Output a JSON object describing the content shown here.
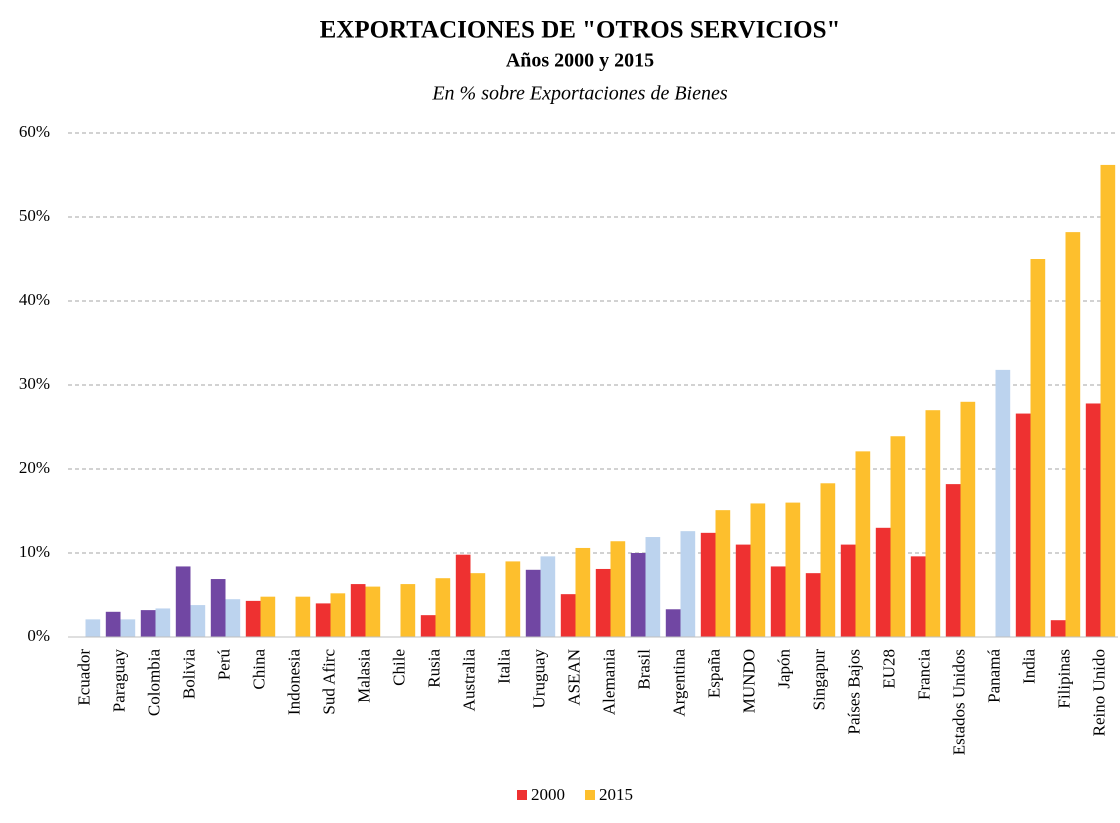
{
  "chart_data": {
    "type": "bar",
    "title": "EXPORTACIONES  DE \"OTROS SERVICIOS\"",
    "subtitle": "Años 2000 y 2015",
    "note": "En % sobre Exportaciones de Bienes",
    "categories": [
      "Ecuador",
      "Paraguay",
      "Colombia",
      "Bolivia",
      "Perú",
      "China",
      "Indonesia",
      "Sud Afirc",
      "Malasia",
      "Chile",
      "Rusia",
      "Australia",
      "Italia",
      "Uruguay",
      "ASEAN",
      "Alemania",
      "Brasil",
      "Argentina",
      "España",
      "MUNDO",
      "Japón",
      "Singapur",
      "Países Bajos",
      "EU28",
      "Francia",
      "Estados Unidos",
      "Panamá",
      "India",
      "Filipinas",
      "Reino Unido"
    ],
    "series": [
      {
        "name": "2000",
        "color": "#ee3131",
        "values": [
          null,
          3.0,
          3.2,
          8.4,
          6.9,
          4.3,
          null,
          4.0,
          6.3,
          null,
          2.6,
          9.8,
          null,
          8.0,
          5.1,
          8.1,
          10.0,
          3.3,
          12.4,
          11.0,
          8.4,
          7.6,
          11.0,
          13.0,
          9.6,
          18.2,
          null,
          26.6,
          2.0,
          27.8
        ],
        "colors": [
          "#7147a3",
          "#7147a3",
          "#7147a3",
          "#7147a3",
          "#7147a3",
          "#ee3131",
          "#ee3131",
          "#ee3131",
          "#ee3131",
          "#ee3131",
          "#ee3131",
          "#ee3131",
          "#ee3131",
          "#7147a3",
          "#ee3131",
          "#ee3131",
          "#7147a3",
          "#7147a3",
          "#ee3131",
          "#ee3131",
          "#ee3131",
          "#ee3131",
          "#ee3131",
          "#ee3131",
          "#ee3131",
          "#ee3131",
          "#7147a3",
          "#ee3131",
          "#ee3131",
          "#ee3131"
        ]
      },
      {
        "name": "2015",
        "color": "#fdbf2d",
        "values": [
          2.1,
          2.1,
          3.4,
          3.8,
          4.5,
          4.8,
          4.8,
          5.2,
          6.0,
          6.3,
          7.0,
          7.6,
          9.0,
          9.6,
          10.6,
          11.4,
          11.9,
          12.6,
          15.1,
          15.9,
          16.0,
          18.3,
          22.1,
          23.9,
          27.0,
          28.0,
          31.8,
          45.0,
          48.2,
          56.2
        ],
        "colors": [
          "#bcd3ee",
          "#bcd3ee",
          "#bcd3ee",
          "#bcd3ee",
          "#bcd3ee",
          "#fdbf2d",
          "#fdbf2d",
          "#fdbf2d",
          "#fdbf2d",
          "#fdbf2d",
          "#fdbf2d",
          "#fdbf2d",
          "#fdbf2d",
          "#bcd3ee",
          "#fdbf2d",
          "#fdbf2d",
          "#bcd3ee",
          "#bcd3ee",
          "#fdbf2d",
          "#fdbf2d",
          "#fdbf2d",
          "#fdbf2d",
          "#fdbf2d",
          "#fdbf2d",
          "#fdbf2d",
          "#fdbf2d",
          "#bcd3ee",
          "#fdbf2d",
          "#fdbf2d",
          "#fdbf2d"
        ]
      }
    ],
    "ylim": [
      0,
      60
    ],
    "yticks": [
      {
        "value": 0,
        "label": "0%"
      },
      {
        "value": 10,
        "label": "10%"
      },
      {
        "value": 20,
        "label": "20%"
      },
      {
        "value": 30,
        "label": "30%"
      },
      {
        "value": 40,
        "label": "40%"
      },
      {
        "value": 50,
        "label": "50%"
      },
      {
        "value": 60,
        "label": "60%"
      }
    ],
    "grid": true,
    "legend": "bottom"
  }
}
